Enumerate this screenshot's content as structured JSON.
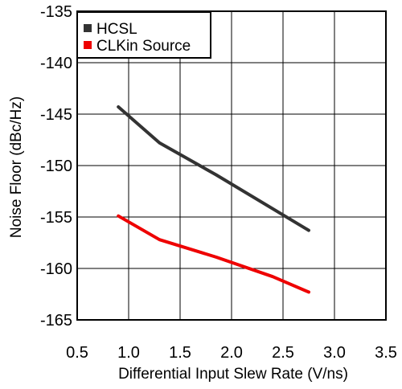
{
  "chart_data": {
    "type": "line",
    "title": "",
    "xlabel": "Differential Input Slew Rate (V/ns)",
    "ylabel": "Noise Floor (dBc/Hz)",
    "xlim": [
      0.5,
      3.5
    ],
    "ylim": [
      -165,
      -135
    ],
    "x_ticks": [
      "0.5",
      "1.0",
      "1.5",
      "2.0",
      "2.5",
      "3.0",
      "3.5"
    ],
    "y_ticks": [
      "-135",
      "-140",
      "-145",
      "-150",
      "-155",
      "-160",
      "-165"
    ],
    "grid": true,
    "legend_position": "top-left",
    "series": [
      {
        "name": "HCSL",
        "color": "#333333",
        "points": [
          [
            0.9,
            -144.3
          ],
          [
            1.3,
            -147.8
          ],
          [
            1.85,
            -150.9
          ],
          [
            2.75,
            -156.3
          ]
        ]
      },
      {
        "name": "CLKin Source",
        "color": "#ee0000",
        "points": [
          [
            0.9,
            -154.9
          ],
          [
            1.3,
            -157.2
          ],
          [
            1.85,
            -158.9
          ],
          [
            2.4,
            -160.8
          ],
          [
            2.75,
            -162.3
          ]
        ]
      }
    ]
  }
}
